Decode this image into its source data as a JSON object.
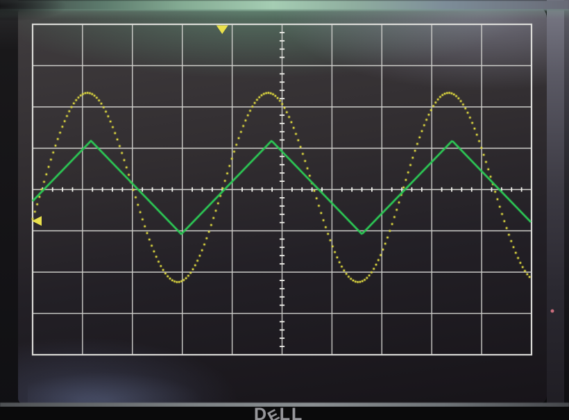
{
  "monitor": {
    "brand_letters": [
      "D",
      "E",
      "L",
      "L"
    ],
    "bezel_dot_color": "#c96d7c"
  },
  "screen": {
    "grid_color": "#d6d6d2",
    "grid_border_color": "#e4e4e0",
    "tick_color": "#f3f3ee"
  },
  "chart_data": {
    "type": "line",
    "title": "",
    "xlabel": "",
    "ylabel": "",
    "legend": "none",
    "grid": {
      "h_divisions": 10,
      "v_divisions": 8,
      "minor_ticks_per_division": 5,
      "center_axes_have_ticks": true
    },
    "series": [
      {
        "name": "channel-1",
        "shape": "sine",
        "style": "dotted",
        "color": "#ded93f",
        "amplitude_div": 2.29,
        "period_div": 3.62,
        "peak_x_div": 1.1,
        "center_y_div": 3.95
      },
      {
        "name": "channel-2",
        "shape": "triangle",
        "style": "solid",
        "color": "#2cc554",
        "amplitude_div": 1.13,
        "period_div": 3.62,
        "peak_x_div": 1.17,
        "center_y_div": 3.95
      }
    ],
    "markers": [
      {
        "name": "trigger-position",
        "edge": "top",
        "x_div": 3.8,
        "color": "#eae14b"
      },
      {
        "name": "trigger-level",
        "edge": "left",
        "y_div": 4.76,
        "color": "#eae14b"
      }
    ]
  }
}
